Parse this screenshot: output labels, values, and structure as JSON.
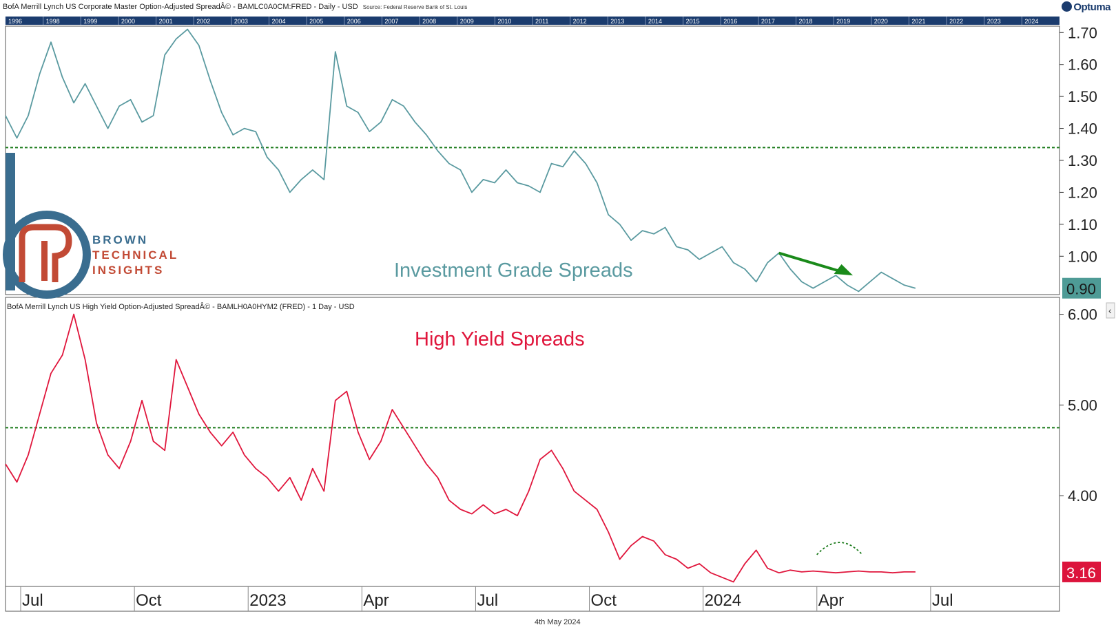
{
  "header": {
    "top_series_title": "BofA Merrill Lynch US Corporate Master Option-Adjusted SpreadÂ© - BAMLC0A0CM:FRED - Daily - USD",
    "top_source": "Source: Federal Reserve Bank of St. Louis",
    "bottom_series_title": "BofA Merrill Lynch US High Yield Option-Adjusted SpreadÂ© - BAMLH0A0HYM2 (FRED) - 1 Day - USD",
    "brand": "Optuma"
  },
  "logo": {
    "line1": "BROWN",
    "line2": "TECHNICAL",
    "line3": "INSIGHTS"
  },
  "footer_date": "4th May 2024",
  "colors": {
    "ig_line": "#5a9aa0",
    "hy_line": "#e0163c",
    "guide": "#1a7a1a",
    "arrow": "#1a8a1a",
    "overview_bar": "#1b3c6e",
    "ig_badge": "#4e9b96",
    "hy_badge": "#dc143c"
  },
  "overview_years": [
    "1996",
    "1998",
    "1999",
    "2000",
    "2001",
    "2002",
    "2003",
    "2004",
    "2005",
    "2006",
    "2007",
    "2008",
    "2009",
    "2010",
    "2011",
    "2012",
    "2013",
    "2014",
    "2015",
    "2016",
    "2017",
    "2018",
    "2019",
    "2020",
    "2021",
    "2022",
    "2023",
    "2024"
  ],
  "chart_data": [
    {
      "type": "line",
      "name": "ig",
      "title": "Investment Grade Spreads",
      "ylim": [
        0.88,
        1.72
      ],
      "yticks": [
        "1.70",
        "1.60",
        "1.50",
        "1.40",
        "1.30",
        "1.20",
        "1.10",
        "1.00"
      ],
      "ytick_values": [
        1.7,
        1.6,
        1.5,
        1.4,
        1.3,
        1.2,
        1.1,
        1.0
      ],
      "last_value": 0.9,
      "last_label": "0.90",
      "reference_line": 1.34,
      "x_months": [
        0,
        0.3,
        0.6,
        0.9,
        1.2,
        1.5,
        1.8,
        2.1,
        2.4,
        2.7,
        3.0,
        3.3,
        3.6,
        3.9,
        4.2,
        4.5,
        4.8,
        5.1,
        5.4,
        5.7,
        6.0,
        6.3,
        6.6,
        6.9,
        7.2,
        7.5,
        7.8,
        8.1,
        8.4,
        8.7,
        9.0,
        9.3,
        9.6,
        9.9,
        10.2,
        10.5,
        10.8,
        11.1,
        11.4,
        11.7,
        12.0,
        12.3,
        12.6,
        12.9,
        13.2,
        13.5,
        13.8,
        14.1,
        14.4,
        14.7,
        15.0,
        15.3,
        15.6,
        15.9,
        16.2,
        16.5,
        16.8,
        17.1,
        17.4,
        17.7,
        18.0,
        18.3,
        18.6,
        18.9,
        19.2,
        19.5,
        19.8,
        20.1,
        20.4,
        20.7,
        21.0,
        21.3,
        21.6,
        21.9,
        22.2,
        22.5,
        22.8,
        23.1,
        23.4,
        23.7,
        24.0
      ],
      "values": [
        1.44,
        1.37,
        1.44,
        1.57,
        1.67,
        1.56,
        1.48,
        1.54,
        1.47,
        1.4,
        1.47,
        1.49,
        1.42,
        1.44,
        1.63,
        1.68,
        1.71,
        1.66,
        1.55,
        1.45,
        1.38,
        1.4,
        1.39,
        1.31,
        1.27,
        1.2,
        1.24,
        1.27,
        1.24,
        1.64,
        1.47,
        1.45,
        1.39,
        1.42,
        1.49,
        1.47,
        1.42,
        1.38,
        1.33,
        1.29,
        1.27,
        1.2,
        1.24,
        1.23,
        1.27,
        1.23,
        1.22,
        1.2,
        1.29,
        1.28,
        1.33,
        1.29,
        1.23,
        1.13,
        1.1,
        1.05,
        1.08,
        1.07,
        1.09,
        1.03,
        1.02,
        0.99,
        1.01,
        1.03,
        0.98,
        0.96,
        0.92,
        0.98,
        1.01,
        0.96,
        0.92,
        0.9,
        0.92,
        0.94,
        0.91,
        0.89,
        0.92,
        0.95,
        0.93,
        0.91,
        0.9
      ]
    },
    {
      "type": "line",
      "name": "hy",
      "title": "High Yield Spreads",
      "ylim": [
        3.0,
        6.05
      ],
      "yticks": [
        "6.00",
        "5.00",
        "4.00"
      ],
      "ytick_values": [
        6.0,
        5.0,
        4.0
      ],
      "last_value": 3.16,
      "last_label": "3.16",
      "reference_line": 4.75,
      "x_months": [
        0,
        0.3,
        0.6,
        0.9,
        1.2,
        1.5,
        1.8,
        2.1,
        2.4,
        2.7,
        3.0,
        3.3,
        3.6,
        3.9,
        4.2,
        4.5,
        4.8,
        5.1,
        5.4,
        5.7,
        6.0,
        6.3,
        6.6,
        6.9,
        7.2,
        7.5,
        7.8,
        8.1,
        8.4,
        8.7,
        9.0,
        9.3,
        9.6,
        9.9,
        10.2,
        10.5,
        10.8,
        11.1,
        11.4,
        11.7,
        12.0,
        12.3,
        12.6,
        12.9,
        13.2,
        13.5,
        13.8,
        14.1,
        14.4,
        14.7,
        15.0,
        15.3,
        15.6,
        15.9,
        16.2,
        16.5,
        16.8,
        17.1,
        17.4,
        17.7,
        18.0,
        18.3,
        18.6,
        18.9,
        19.2,
        19.5,
        19.8,
        20.1,
        20.4,
        20.7,
        21.0,
        21.3,
        21.6,
        21.9,
        22.2,
        22.5,
        22.8,
        23.1,
        23.4,
        23.7,
        24.0
      ],
      "values": [
        4.35,
        4.15,
        4.45,
        4.9,
        5.35,
        5.55,
        6.0,
        5.5,
        4.8,
        4.45,
        4.3,
        4.6,
        5.05,
        4.6,
        4.5,
        5.5,
        5.2,
        4.9,
        4.7,
        4.55,
        4.7,
        4.45,
        4.3,
        4.2,
        4.05,
        4.2,
        3.95,
        4.3,
        4.05,
        5.05,
        5.15,
        4.7,
        4.4,
        4.6,
        4.95,
        4.75,
        4.55,
        4.35,
        4.2,
        3.95,
        3.85,
        3.8,
        3.9,
        3.8,
        3.85,
        3.78,
        4.05,
        4.4,
        4.5,
        4.3,
        4.05,
        3.95,
        3.85,
        3.6,
        3.3,
        3.45,
        3.55,
        3.5,
        3.35,
        3.3,
        3.2,
        3.25,
        3.15,
        3.1,
        3.05,
        3.25,
        3.4,
        3.2,
        3.15,
        3.18,
        3.16,
        3.17,
        3.16,
        3.15,
        3.16,
        3.17,
        3.16,
        3.16,
        3.15,
        3.16,
        3.16
      ]
    }
  ],
  "x_axis": {
    "ticks": [
      {
        "label": "Jul",
        "month": 0.4
      },
      {
        "label": "Oct",
        "month": 3.4
      },
      {
        "label": "2023",
        "month": 6.4
      },
      {
        "label": "Apr",
        "month": 9.4
      },
      {
        "label": "Jul",
        "month": 12.4
      },
      {
        "label": "Oct",
        "month": 15.4
      },
      {
        "label": "2024",
        "month": 18.4
      },
      {
        "label": "Apr",
        "month": 21.4
      },
      {
        "label": "Jul",
        "month": 24.4
      }
    ],
    "range_months": [
      0,
      27.8
    ]
  }
}
